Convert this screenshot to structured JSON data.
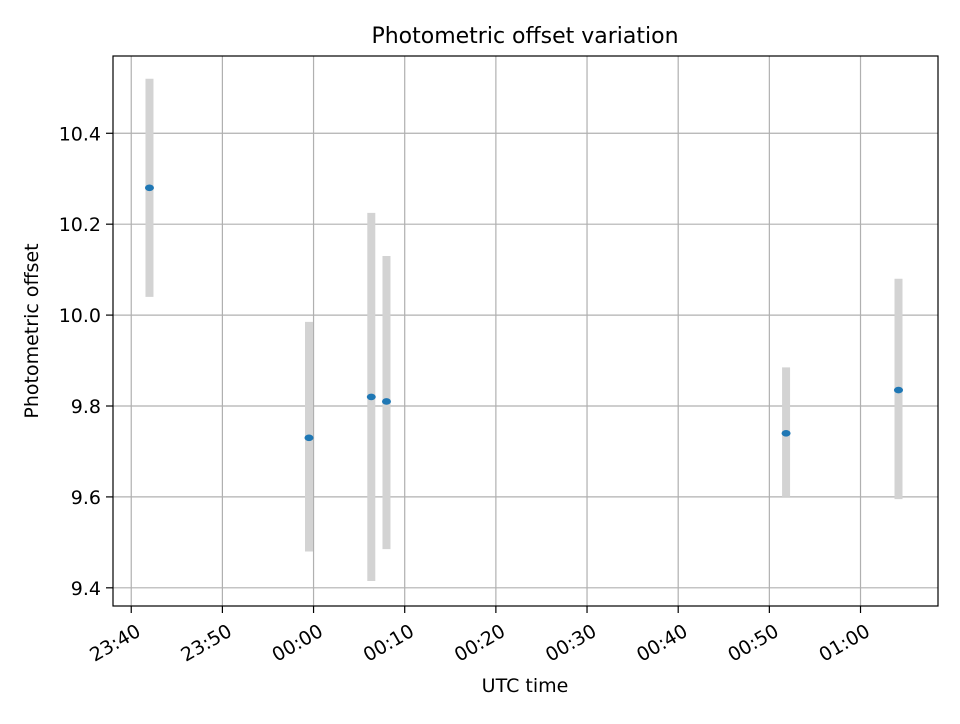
{
  "chart_data": {
    "type": "scatter",
    "title": "Photometric offset variation",
    "xlabel": "UTC time",
    "ylabel": "Photometric offset",
    "x_axis_kind": "time",
    "xlim": [
      "23:38",
      "01:08:30"
    ],
    "ylim": [
      9.36,
      10.57
    ],
    "x_ticks": [
      "23:40",
      "23:50",
      "00:00",
      "00:10",
      "00:20",
      "00:30",
      "00:40",
      "00:50",
      "01:00"
    ],
    "y_ticks": [
      9.4,
      9.6,
      9.8,
      10.0,
      10.2,
      10.4
    ],
    "grid": true,
    "legend": "none",
    "colors": {
      "points": "#1f77b4",
      "error_bars": "#d3d3d3",
      "grid": "#b0b0b0"
    },
    "series": [
      {
        "points": [
          {
            "x": "23:42:00",
            "y": 10.28,
            "y_low": 10.04,
            "y_high": 10.52
          },
          {
            "x": "23:59:30",
            "y": 9.73,
            "y_low": 9.48,
            "y_high": 9.985
          },
          {
            "x": "00:06:20",
            "y": 9.82,
            "y_low": 9.415,
            "y_high": 10.225
          },
          {
            "x": "00:08:00",
            "y": 9.81,
            "y_low": 9.485,
            "y_high": 10.13
          },
          {
            "x": "00:51:50",
            "y": 9.74,
            "y_low": 9.6,
            "y_high": 9.885
          },
          {
            "x": "01:04:10",
            "y": 9.835,
            "y_low": 9.595,
            "y_high": 10.08
          }
        ]
      }
    ]
  }
}
